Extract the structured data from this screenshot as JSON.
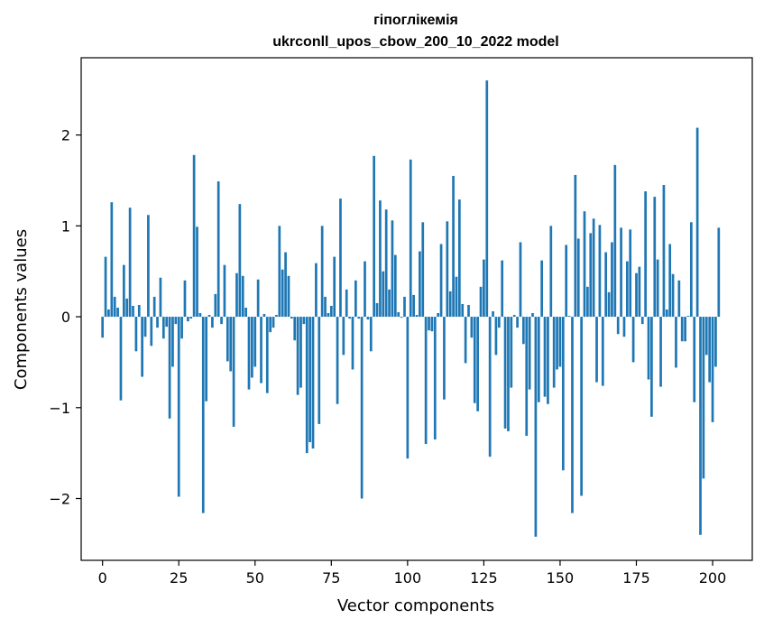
{
  "chart_data": {
    "type": "bar",
    "title": "гіпоглікемія",
    "subtitle": "ukrconll_upos_cbow_200_10_2022 model",
    "xlabel": "Vector components",
    "ylabel": "Components values",
    "xlim": [
      -7,
      213
    ],
    "ylim": [
      -2.68,
      2.85
    ],
    "x_ticks": [
      0,
      25,
      50,
      75,
      100,
      125,
      150,
      175,
      200
    ],
    "x_tick_labels": [
      "0",
      "25",
      "50",
      "75",
      "100",
      "125",
      "150",
      "175",
      "200"
    ],
    "y_ticks": [
      -2,
      -1,
      0,
      1,
      2
    ],
    "y_tick_labels": [
      "−2",
      "−1",
      "0",
      "1",
      "2"
    ],
    "grid": false,
    "legend": "none",
    "bar_color": "#1f77b4",
    "values": [
      -0.23,
      0.66,
      0.08,
      1.26,
      0.22,
      0.1,
      -0.92,
      0.57,
      0.2,
      1.2,
      0.12,
      -0.38,
      0.13,
      -0.66,
      -0.22,
      1.12,
      -0.32,
      0.22,
      -0.12,
      0.43,
      -0.24,
      -0.11,
      -1.12,
      -0.55,
      -0.08,
      -1.98,
      -0.24,
      0.4,
      -0.05,
      -0.02,
      1.78,
      0.99,
      0.04,
      -2.16,
      -0.93,
      0.02,
      -0.12,
      0.25,
      1.49,
      -0.08,
      0.57,
      -0.49,
      -0.6,
      -1.21,
      0.48,
      1.24,
      0.45,
      0.1,
      -0.8,
      -0.67,
      -0.55,
      0.41,
      -0.73,
      0.03,
      -0.84,
      -0.17,
      -0.12,
      0.02,
      1.0,
      0.52,
      0.71,
      0.45,
      -0.02,
      -0.26,
      -0.86,
      -0.78,
      -0.08,
      -1.5,
      -1.38,
      -1.45,
      0.59,
      -1.18,
      1.0,
      0.22,
      0.04,
      0.12,
      0.66,
      -0.96,
      1.3,
      -0.42,
      0.3,
      -0.02,
      -0.58,
      0.4,
      -0.02,
      -2.0,
      0.61,
      -0.03,
      -0.38,
      1.77,
      0.15,
      1.28,
      0.5,
      1.18,
      0.3,
      1.06,
      0.68,
      0.05,
      -0.01,
      0.22,
      -1.56,
      1.73,
      0.24,
      0.02,
      0.72,
      1.04,
      -1.4,
      -0.15,
      -0.16,
      -1.35,
      0.04,
      0.8,
      -0.91,
      1.05,
      0.28,
      1.55,
      0.44,
      1.29,
      0.14,
      -0.51,
      0.13,
      -0.23,
      -0.95,
      -1.04,
      0.33,
      0.63,
      2.6,
      -1.54,
      0.06,
      -0.42,
      -0.12,
      0.62,
      -1.23,
      -1.26,
      -0.78,
      0.02,
      -0.12,
      0.82,
      -0.3,
      -1.31,
      -0.8,
      0.04,
      -2.42,
      -0.94,
      0.62,
      -0.88,
      -0.96,
      1.0,
      -0.78,
      -0.58,
      -0.55,
      -1.69,
      0.79,
      0.01,
      -2.16,
      1.56,
      0.86,
      -1.97,
      1.16,
      0.33,
      0.92,
      1.08,
      -0.72,
      1.01,
      -0.76,
      0.71,
      0.27,
      0.82,
      1.67,
      -0.19,
      0.98,
      -0.22,
      0.61,
      0.96,
      -0.5,
      0.48,
      0.55,
      -0.08,
      1.38,
      -0.69,
      -1.1,
      1.32,
      0.63,
      -0.77,
      1.45,
      0.08,
      0.8,
      0.47,
      -0.56,
      0.4,
      -0.27,
      -0.27,
      0.01,
      1.04,
      -0.94,
      2.08,
      -2.4,
      -1.78,
      -0.42,
      -0.72,
      -1.16,
      -0.55,
      0.98
    ]
  }
}
